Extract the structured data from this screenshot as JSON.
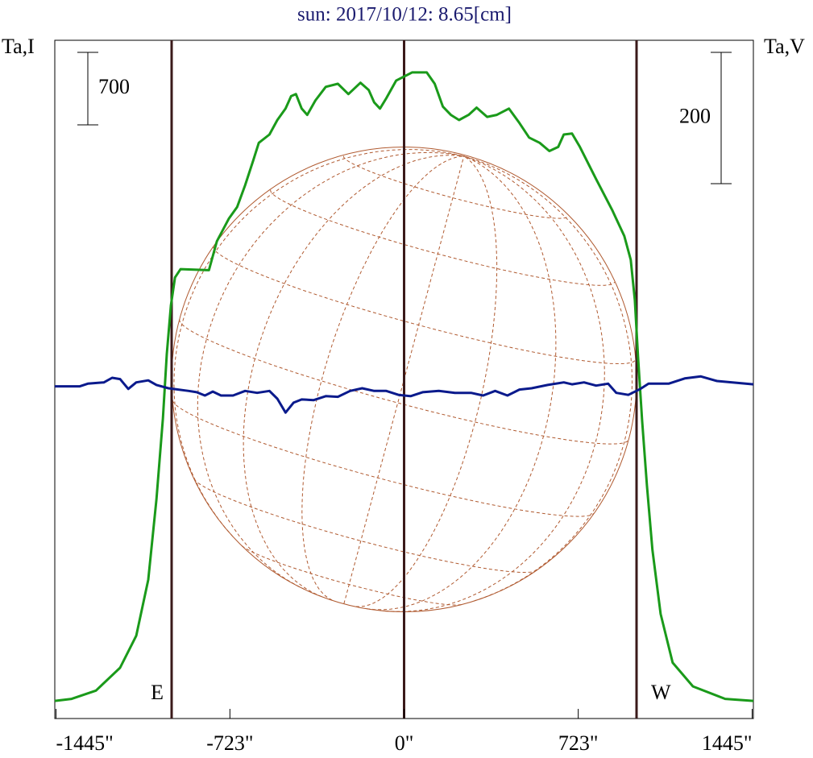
{
  "chart_data": {
    "type": "line",
    "title": "sun: 2017/10/12: 8.65[cm]",
    "ylabel": "Ta,I",
    "y2label": "Ta,V",
    "xlim": [
      -1450,
      1450
    ],
    "ylim": [
      -150,
      6400
    ],
    "y2lim": [
      -508,
      525
    ],
    "xticks": [
      {
        "value": -1445,
        "label": "-1445\""
      },
      {
        "value": -723,
        "label": "-723\""
      },
      {
        "value": 0,
        "label": "0\""
      },
      {
        "value": 723,
        "label": "723\""
      },
      {
        "value": 1445,
        "label": "1445\""
      }
    ],
    "vlines": [
      -965,
      0,
      965
    ],
    "limb_labels": [
      "E",
      "W"
    ],
    "scale_bars": [
      {
        "value": 700,
        "axis": "y"
      },
      {
        "value": 200,
        "axis": "y2"
      }
    ],
    "series": [
      {
        "color": "#1a9a1a",
        "x": [
          -1450,
          -1380,
          -1279,
          -1179,
          -1112,
          -1062,
          -1028,
          -1001,
          -985,
          -968,
          -951,
          -928,
          -810,
          -777,
          -727,
          -693,
          -660,
          -626,
          -603,
          -559,
          -526,
          -492,
          -469,
          -449,
          -425,
          -402,
          -368,
          -325,
          -275,
          -231,
          -181,
          -147,
          -124,
          -100,
          -74,
          -33,
          0,
          33,
          94,
          127,
          161,
          194,
          228,
          268,
          301,
          345,
          385,
          435,
          479,
          519,
          563,
          603,
          640,
          663,
          697,
          730,
          797,
          864,
          914,
          941,
          958,
          971,
          988,
          1008,
          1031,
          1065,
          1115,
          1199,
          1333,
          1450
        ],
        "values": [
          20,
          40,
          120,
          340,
          650,
          1190,
          1970,
          2750,
          3370,
          3840,
          4110,
          4190,
          4180,
          4460,
          4680,
          4790,
          5000,
          5240,
          5410,
          5490,
          5630,
          5740,
          5860,
          5880,
          5740,
          5680,
          5820,
          5950,
          5980,
          5880,
          5990,
          5920,
          5800,
          5740,
          5840,
          6010,
          6050,
          6090,
          6090,
          5980,
          5760,
          5680,
          5630,
          5680,
          5750,
          5660,
          5680,
          5740,
          5600,
          5460,
          5410,
          5330,
          5370,
          5490,
          5500,
          5370,
          5060,
          4760,
          4510,
          4280,
          3890,
          3350,
          2730,
          2100,
          1480,
          860,
          390,
          160,
          40,
          20
        ]
      },
      {
        "color": "#0a1a8c",
        "axis": "y2",
        "x": [
          -1450,
          -1346,
          -1313,
          -1246,
          -1212,
          -1179,
          -1145,
          -1112,
          -1062,
          -1028,
          -978,
          -894,
          -861,
          -827,
          -794,
          -760,
          -710,
          -660,
          -610,
          -559,
          -526,
          -492,
          -459,
          -425,
          -375,
          -325,
          -275,
          -224,
          -174,
          -124,
          -74,
          -23,
          27,
          77,
          144,
          211,
          278,
          328,
          378,
          429,
          479,
          529,
          596,
          663,
          697,
          747,
          797,
          847,
          881,
          931,
          981,
          1015,
          1098,
          1165,
          1232,
          1299,
          1450
        ],
        "values": [
          -2,
          -2,
          2,
          4,
          11,
          9,
          -6,
          4,
          7,
          0,
          -5,
          -9,
          -11,
          -16,
          -10,
          -16,
          -16,
          -9,
          -12,
          -9,
          -21,
          -42,
          -27,
          -22,
          -23,
          -17,
          -18,
          -9,
          -5,
          -9,
          -9,
          -15,
          -17,
          -11,
          -9,
          -12,
          -12,
          -16,
          -9,
          -16,
          -7,
          -5,
          0,
          4,
          1,
          4,
          -1,
          2,
          -12,
          -15,
          -6,
          2,
          2,
          10,
          13,
          6,
          1
        ]
      }
    ]
  }
}
